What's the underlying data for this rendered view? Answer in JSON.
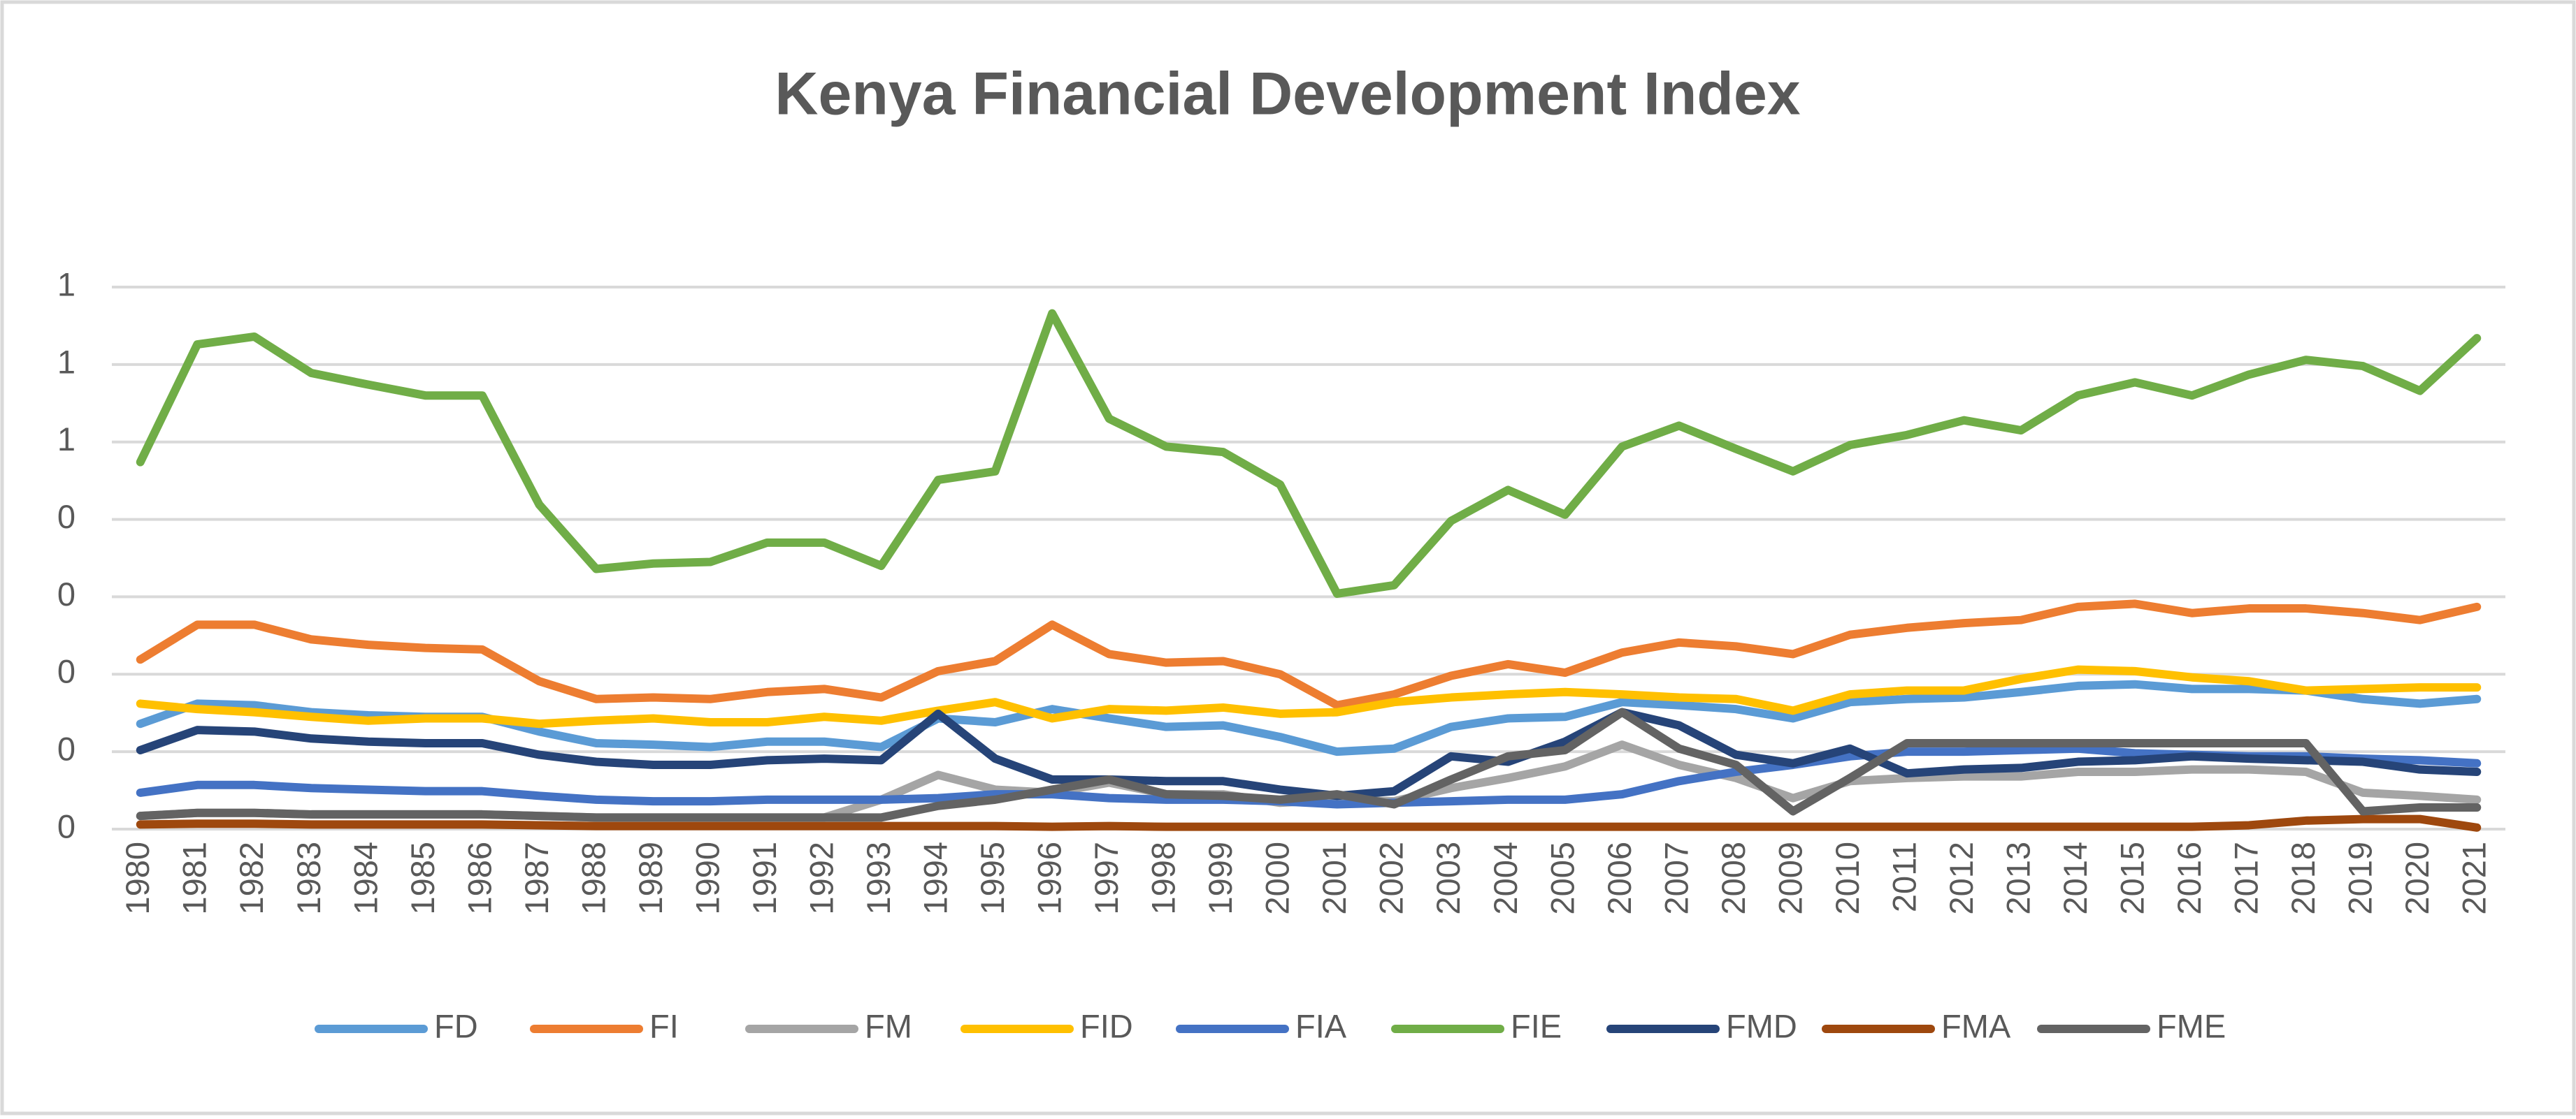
{
  "chart_data": {
    "type": "line",
    "title": "Kenya Financial Development Index",
    "categories": [
      "1980",
      "1981",
      "1982",
      "1983",
      "1984",
      "1985",
      "1986",
      "1987",
      "1988",
      "1989",
      "1990",
      "1991",
      "1992",
      "1993",
      "1994",
      "1995",
      "1996",
      "1997",
      "1998",
      "1999",
      "2000",
      "2001",
      "2002",
      "2003",
      "2004",
      "2005",
      "2006",
      "2007",
      "2008",
      "2009",
      "2010",
      "2011",
      "2012",
      "2013",
      "2014",
      "2015",
      "2016",
      "2017",
      "2018",
      "2019",
      "2020",
      "2021"
    ],
    "ylim": [
      0,
      0.7
    ],
    "yticks": [
      0,
      {
        "value": 0.1,
        "label": "0"
      },
      {
        "value": 0.2,
        "label": "0"
      },
      {
        "value": 0.3,
        "label": "0"
      },
      {
        "value": 0.4,
        "label": "0"
      },
      {
        "value": 0.5,
        "label": "1"
      },
      {
        "value": 0.6,
        "label": "1"
      },
      {
        "value": 0.7,
        "label": "1"
      }
    ],
    "grid": true,
    "legend": "bottom",
    "series": [
      {
        "name": "FD",
        "color": "#5b9bd5",
        "values": [
          0.136,
          0.162,
          0.16,
          0.151,
          0.147,
          0.145,
          0.145,
          0.126,
          0.111,
          0.109,
          0.106,
          0.113,
          0.113,
          0.106,
          0.143,
          0.138,
          0.155,
          0.143,
          0.132,
          0.134,
          0.119,
          0.1,
          0.104,
          0.132,
          0.143,
          0.145,
          0.164,
          0.16,
          0.155,
          0.143,
          0.164,
          0.168,
          0.17,
          0.177,
          0.185,
          0.187,
          0.181,
          0.181,
          0.179,
          0.168,
          0.162,
          0.168
        ]
      },
      {
        "name": "FI",
        "color": "#ed7d31",
        "values": [
          0.219,
          0.264,
          0.264,
          0.245,
          0.238,
          0.234,
          0.232,
          0.191,
          0.168,
          0.17,
          0.168,
          0.177,
          0.181,
          0.17,
          0.204,
          0.217,
          0.264,
          0.226,
          0.215,
          0.217,
          0.2,
          0.16,
          0.174,
          0.198,
          0.213,
          0.202,
          0.228,
          0.241,
          0.236,
          0.226,
          0.251,
          0.26,
          0.266,
          0.27,
          0.287,
          0.291,
          0.279,
          0.285,
          0.285,
          0.279,
          0.27,
          0.287
        ]
      },
      {
        "name": "FM",
        "color": "#a5a5a5",
        "values": [
          0.017,
          0.021,
          0.021,
          0.019,
          0.019,
          0.019,
          0.019,
          0.017,
          0.015,
          0.015,
          0.015,
          0.015,
          0.015,
          0.038,
          0.07,
          0.051,
          0.047,
          0.06,
          0.045,
          0.045,
          0.034,
          0.038,
          0.036,
          0.053,
          0.066,
          0.081,
          0.109,
          0.083,
          0.066,
          0.04,
          0.062,
          0.066,
          0.068,
          0.068,
          0.074,
          0.074,
          0.077,
          0.077,
          0.074,
          0.047,
          0.043,
          0.038
        ]
      },
      {
        "name": "FID",
        "color": "#ffc000",
        "values": [
          0.162,
          0.155,
          0.151,
          0.145,
          0.14,
          0.143,
          0.143,
          0.136,
          0.14,
          0.143,
          0.138,
          0.138,
          0.145,
          0.14,
          0.153,
          0.164,
          0.143,
          0.155,
          0.153,
          0.157,
          0.149,
          0.151,
          0.164,
          0.17,
          0.174,
          0.177,
          0.174,
          0.17,
          0.168,
          0.153,
          0.174,
          0.179,
          0.179,
          0.194,
          0.206,
          0.204,
          0.196,
          0.191,
          0.179,
          0.181,
          0.183,
          0.183
        ]
      },
      {
        "name": "FIA",
        "color": "#4472c4",
        "values": [
          0.047,
          0.057,
          0.057,
          0.053,
          0.051,
          0.049,
          0.049,
          0.043,
          0.038,
          0.036,
          0.036,
          0.038,
          0.038,
          0.038,
          0.04,
          0.045,
          0.045,
          0.04,
          0.038,
          0.038,
          0.036,
          0.032,
          0.034,
          0.036,
          0.038,
          0.038,
          0.045,
          0.062,
          0.074,
          0.083,
          0.094,
          0.1,
          0.1,
          0.102,
          0.104,
          0.098,
          0.096,
          0.094,
          0.094,
          0.091,
          0.089,
          0.085
        ]
      },
      {
        "name": "FIE",
        "color": "#70ad47",
        "values": [
          0.474,
          0.626,
          0.636,
          0.589,
          0.574,
          0.56,
          0.56,
          0.419,
          0.336,
          0.343,
          0.345,
          0.37,
          0.37,
          0.34,
          0.451,
          0.462,
          0.666,
          0.53,
          0.494,
          0.487,
          0.445,
          0.304,
          0.315,
          0.398,
          0.438,
          0.406,
          0.494,
          0.521,
          0.491,
          0.462,
          0.496,
          0.509,
          0.528,
          0.515,
          0.56,
          0.577,
          0.56,
          0.587,
          0.606,
          0.598,
          0.566,
          0.634
        ]
      },
      {
        "name": "FMD",
        "color": "#264478",
        "values": [
          0.102,
          0.128,
          0.126,
          0.117,
          0.113,
          0.111,
          0.111,
          0.096,
          0.087,
          0.083,
          0.083,
          0.089,
          0.091,
          0.089,
          0.149,
          0.091,
          0.064,
          0.064,
          0.062,
          0.062,
          0.051,
          0.043,
          0.049,
          0.094,
          0.087,
          0.113,
          0.151,
          0.134,
          0.096,
          0.085,
          0.104,
          0.072,
          0.077,
          0.079,
          0.087,
          0.089,
          0.094,
          0.091,
          0.089,
          0.087,
          0.077,
          0.074
        ]
      },
      {
        "name": "FMA",
        "color": "#9e480e",
        "values": [
          0.006,
          0.007,
          0.007,
          0.006,
          0.006,
          0.006,
          0.006,
          0.005,
          0.004,
          0.004,
          0.004,
          0.004,
          0.004,
          0.004,
          0.004,
          0.004,
          0.003,
          0.004,
          0.003,
          0.003,
          0.003,
          0.003,
          0.003,
          0.003,
          0.003,
          0.003,
          0.003,
          0.003,
          0.003,
          0.003,
          0.003,
          0.003,
          0.003,
          0.003,
          0.003,
          0.003,
          0.003,
          0.005,
          0.011,
          0.013,
          0.013,
          0.002
        ]
      },
      {
        "name": "FME",
        "color": "#636363",
        "values": [
          0.017,
          0.021,
          0.021,
          0.019,
          0.019,
          0.019,
          0.019,
          0.017,
          0.015,
          0.015,
          0.015,
          0.015,
          0.015,
          0.015,
          0.03,
          0.038,
          0.051,
          0.064,
          0.045,
          0.043,
          0.038,
          0.045,
          0.032,
          0.064,
          0.094,
          0.102,
          0.151,
          0.104,
          0.083,
          0.023,
          0.066,
          0.111,
          0.111,
          0.111,
          0.111,
          0.111,
          0.111,
          0.111,
          0.111,
          0.023,
          0.028,
          0.028
        ]
      }
    ]
  }
}
